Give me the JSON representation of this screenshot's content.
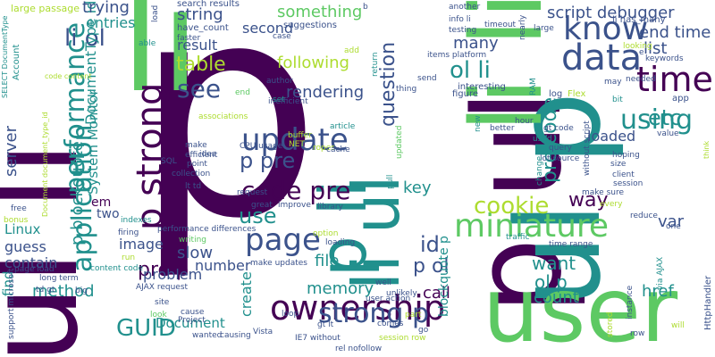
{
  "palette": {
    "dark_purple": "#440154",
    "indigo": "#3b528b",
    "teal": "#21908d",
    "green": "#5dc963",
    "lime": "#addc30",
    "yellow": "#fde725"
  },
  "words": [
    {
      "text": "p",
      "c": "dark_purple"
    },
    {
      "text": "ul li",
      "c": "dark_purple"
    },
    {
      "text": "li",
      "c": "green"
    },
    {
      "text": "p ul",
      "c": "dark_purple"
    },
    {
      "text": "ul p",
      "c": "teal"
    },
    {
      "text": "p li",
      "c": "teal"
    },
    {
      "text": "li li",
      "c": "green"
    },
    {
      "text": "li ul",
      "c": "teal"
    },
    {
      "text": "user",
      "c": "green"
    },
    {
      "text": "ownership",
      "c": "dark_purple"
    },
    {
      "text": "p strong",
      "c": "dark_purple"
    },
    {
      "text": "data",
      "c": "indigo"
    },
    {
      "text": "know",
      "c": "indigo"
    },
    {
      "text": "time",
      "c": "dark_purple"
    },
    {
      "text": "miniature",
      "c": "green"
    },
    {
      "text": "update",
      "c": "indigo"
    },
    {
      "text": "page",
      "c": "indigo"
    },
    {
      "text": "performance",
      "c": "teal"
    },
    {
      "text": "application",
      "c": "teal"
    },
    {
      "text": "code pre",
      "c": "dark_purple"
    },
    {
      "text": "using",
      "c": "teal"
    },
    {
      "text": "strong p",
      "c": "indigo"
    },
    {
      "text": "etc",
      "c": "teal"
    },
    {
      "text": "see",
      "c": "indigo"
    },
    {
      "text": "p pre",
      "c": "indigo"
    },
    {
      "text": "li ol",
      "c": "indigo"
    },
    {
      "text": "ol li",
      "c": "teal"
    },
    {
      "text": "use",
      "c": "teal"
    },
    {
      "text": "cookie",
      "c": "lime"
    },
    {
      "text": "GUID",
      "c": "teal"
    },
    {
      "text": "pre code",
      "c": "teal"
    },
    {
      "text": "table",
      "c": "lime"
    },
    {
      "text": "way",
      "c": "dark_purple"
    },
    {
      "text": "question",
      "c": "indigo"
    },
    {
      "text": "server",
      "c": "indigo"
    },
    {
      "text": "pre p",
      "c": "dark_purple"
    },
    {
      "text": "p ol",
      "c": "indigo"
    },
    {
      "text": "id",
      "c": "indigo"
    },
    {
      "text": "want",
      "c": "teal"
    },
    {
      "text": "ol p",
      "c": "teal"
    },
    {
      "text": "p blockquote",
      "c": "teal"
    },
    {
      "text": "script debugger",
      "c": "indigo"
    },
    {
      "text": "end time",
      "c": "indigo"
    },
    {
      "text": "list",
      "c": "indigo"
    },
    {
      "text": "rendering",
      "c": "indigo"
    },
    {
      "text": "following",
      "c": "lime"
    },
    {
      "text": "something",
      "c": "green"
    },
    {
      "text": "many",
      "c": "indigo"
    },
    {
      "text": "DocumentType id",
      "c": "teal"
    },
    {
      "text": "System Monitor",
      "c": "teal"
    },
    {
      "text": "result",
      "c": "indigo"
    },
    {
      "text": "second",
      "c": "indigo"
    },
    {
      "text": "string",
      "c": "indigo"
    },
    {
      "text": "trying",
      "c": "indigo"
    },
    {
      "text": "entries",
      "c": "teal"
    },
    {
      "text": "key",
      "c": "teal"
    },
    {
      "text": "var",
      "c": "indigo"
    },
    {
      "text": "href",
      "c": "teal"
    },
    {
      "text": "count",
      "c": "teal"
    },
    {
      "text": "call",
      "c": "dark_purple"
    },
    {
      "text": "memory",
      "c": "teal"
    },
    {
      "text": "file",
      "c": "teal"
    },
    {
      "text": "number",
      "c": "indigo"
    },
    {
      "text": "problem",
      "c": "indigo"
    },
    {
      "text": "slow",
      "c": "indigo"
    },
    {
      "text": "image",
      "c": "indigo"
    },
    {
      "text": "method",
      "c": "teal"
    },
    {
      "text": "create",
      "c": "teal"
    },
    {
      "text": "loaded",
      "c": "indigo"
    },
    {
      "text": "guess",
      "c": "indigo"
    },
    {
      "text": "contain",
      "c": "indigo"
    },
    {
      "text": "Linux",
      "c": "teal"
    },
    {
      "text": "find",
      "c": "teal"
    },
    {
      "text": "Document",
      "c": "teal"
    },
    {
      "text": "two",
      "c": "indigo"
    },
    {
      "text": "em",
      "c": "dark_purple"
    },
    {
      "text": "blockquote p",
      "c": "teal"
    },
    {
      "text": "large passage",
      "c": "lime"
    },
    {
      "text": "Account",
      "c": "teal"
    },
    {
      "text": "SELECT DocumentType",
      "c": "teal"
    },
    {
      "text": "code content",
      "c": "lime"
    },
    {
      "text": "have_count",
      "c": "indigo"
    },
    {
      "text": "search results",
      "c": "indigo"
    },
    {
      "text": "suggestions",
      "c": "indigo"
    },
    {
      "text": "another",
      "c": "indigo"
    },
    {
      "text": "info li",
      "c": "indigo"
    },
    {
      "text": "testing",
      "c": "indigo"
    },
    {
      "text": "li has_many",
      "c": "indigo"
    },
    {
      "text": "keywords",
      "c": "indigo"
    },
    {
      "text": "items platform",
      "c": "indigo"
    },
    {
      "text": "interesting",
      "c": "indigo"
    },
    {
      "text": "figure",
      "c": "indigo"
    },
    {
      "text": "log",
      "c": "indigo"
    },
    {
      "text": "Flex",
      "c": "lime"
    },
    {
      "text": "app",
      "c": "indigo"
    },
    {
      "text": "author",
      "c": "indigo"
    },
    {
      "text": "inefficient",
      "c": "indigo"
    },
    {
      "text": "add",
      "c": "lime"
    },
    {
      "text": "case",
      "c": "indigo"
    },
    {
      "text": "faster",
      "c": "indigo"
    },
    {
      "text": "able",
      "c": "teal"
    },
    {
      "text": "load",
      "c": "indigo"
    },
    {
      "text": "associations",
      "c": "lime"
    },
    {
      "text": "article",
      "c": "teal"
    },
    {
      "text": "set",
      "c": "teal"
    },
    {
      "text": "efficient",
      "c": "indigo"
    },
    {
      "text": "make",
      "c": "indigo"
    },
    {
      "text": "idea",
      "c": "indigo"
    },
    {
      "text": "SQL",
      "c": "indigo"
    },
    {
      "text": "point",
      "c": "indigo"
    },
    {
      "text": "collection",
      "c": "indigo"
    },
    {
      "text": "buffer",
      "c": "lime"
    },
    {
      "text": "NET",
      "c": "lime"
    },
    {
      "text": "CPU usage",
      "c": "indigo"
    },
    {
      "text": "ropes",
      "c": "lime"
    },
    {
      "text": "cache",
      "c": "indigo"
    },
    {
      "text": "lt td",
      "c": "indigo"
    },
    {
      "text": "request",
      "c": "indigo"
    },
    {
      "text": "great",
      "c": "indigo"
    },
    {
      "text": "improve",
      "c": "indigo"
    },
    {
      "text": "library",
      "c": "indigo"
    },
    {
      "text": "performance differences",
      "c": "indigo"
    },
    {
      "text": "writing",
      "c": "green"
    },
    {
      "text": "loading",
      "c": "indigo"
    },
    {
      "text": "option",
      "c": "lime"
    },
    {
      "text": "make updates",
      "c": "indigo"
    },
    {
      "text": "content code",
      "c": "teal"
    },
    {
      "text": "run",
      "c": "lime"
    },
    {
      "text": "firing",
      "c": "indigo"
    },
    {
      "text": "indexes",
      "c": "teal"
    },
    {
      "text": "page load",
      "c": "indigo"
    },
    {
      "text": "long term",
      "c": "indigo"
    },
    {
      "text": "td gt",
      "c": "indigo"
    },
    {
      "text": "big",
      "c": "indigo"
    },
    {
      "text": "site",
      "c": "indigo"
    },
    {
      "text": "AJAX request",
      "c": "indigo"
    },
    {
      "text": "Project",
      "c": "indigo"
    },
    {
      "text": "cause",
      "c": "indigo"
    },
    {
      "text": "wanted",
      "c": "indigo"
    },
    {
      "text": "causing",
      "c": "indigo"
    },
    {
      "text": "look",
      "c": "green"
    },
    {
      "text": "Vista",
      "c": "indigo"
    },
    {
      "text": "loop",
      "c": "indigo"
    },
    {
      "text": "IE7 without",
      "c": "indigo"
    },
    {
      "text": "rel nofollow",
      "c": "indigo"
    },
    {
      "text": "user action",
      "c": "indigo"
    },
    {
      "text": "comes",
      "c": "indigo"
    },
    {
      "text": "session row",
      "c": "lime"
    },
    {
      "text": "go",
      "c": "indigo"
    },
    {
      "text": "gt lt",
      "c": "indigo"
    },
    {
      "text": "well",
      "c": "indigo"
    },
    {
      "text": "unlikely",
      "c": "indigo"
    },
    {
      "text": "traffic",
      "c": "teal"
    },
    {
      "text": "time range",
      "c": "indigo"
    },
    {
      "text": "one",
      "c": "indigo"
    },
    {
      "text": "instance",
      "c": "indigo"
    },
    {
      "text": "via AJAX",
      "c": "teal"
    },
    {
      "text": "HttpHandler",
      "c": "indigo"
    },
    {
      "text": "reduce",
      "c": "indigo"
    },
    {
      "text": "every",
      "c": "lime"
    },
    {
      "text": "make sure",
      "c": "indigo"
    },
    {
      "text": "session",
      "c": "indigo"
    },
    {
      "text": "client",
      "c": "indigo"
    },
    {
      "text": "hoping",
      "c": "indigo"
    },
    {
      "text": "value",
      "c": "indigo"
    },
    {
      "text": "size",
      "c": "indigo"
    },
    {
      "text": "lot source",
      "c": "indigo"
    },
    {
      "text": "gt code",
      "c": "indigo"
    },
    {
      "text": "query",
      "c": "indigo"
    },
    {
      "text": "used",
      "c": "teal"
    },
    {
      "text": "hour",
      "c": "indigo"
    },
    {
      "text": "better",
      "c": "indigo"
    },
    {
      "text": "new",
      "c": "teal"
    },
    {
      "text": "change",
      "c": "teal"
    },
    {
      "text": "without script",
      "c": "indigo"
    },
    {
      "text": "may",
      "c": "indigo"
    },
    {
      "text": "bit",
      "c": "teal"
    },
    {
      "text": "needed",
      "c": "indigo"
    },
    {
      "text": "looking",
      "c": "lime"
    },
    {
      "text": "large",
      "c": "indigo"
    },
    {
      "text": "timeout",
      "c": "indigo"
    },
    {
      "text": "nearly",
      "c": "indigo"
    },
    {
      "text": "return",
      "c": "teal"
    },
    {
      "text": "send",
      "c": "indigo"
    },
    {
      "text": "thing",
      "c": "indigo"
    },
    {
      "text": "RAM",
      "c": "teal"
    },
    {
      "text": "part",
      "c": "lime"
    },
    {
      "text": "stored",
      "c": "lime"
    },
    {
      "text": "will",
      "c": "lime"
    },
    {
      "text": "row",
      "c": "indigo"
    },
    {
      "text": "bonus",
      "c": "lime"
    },
    {
      "text": "free",
      "c": "indigo"
    },
    {
      "text": "pull",
      "c": "teal"
    },
    {
      "text": "updated",
      "c": "green"
    },
    {
      "text": "Document document_type_id",
      "c": "lime"
    },
    {
      "text": "support microsoft",
      "c": "indigo"
    },
    {
      "text": "end",
      "c": "green"
    },
    {
      "text": "b",
      "c": "indigo"
    },
    {
      "text": "e",
      "c": "indigo"
    },
    {
      "text": "think",
      "c": "lime"
    }
  ]
}
